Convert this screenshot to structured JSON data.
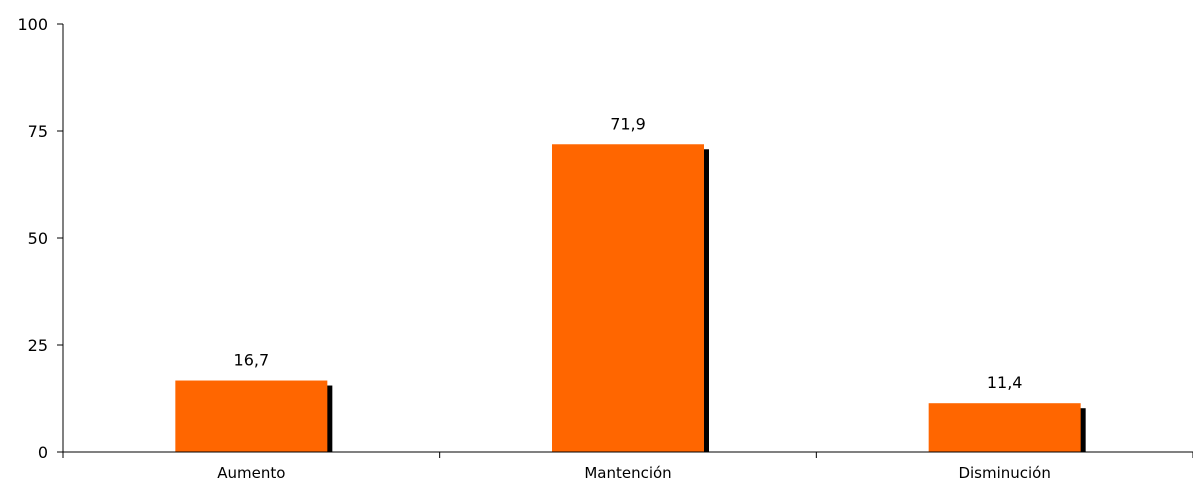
{
  "chart_data": {
    "type": "bar",
    "categories": [
      "Aumento",
      "Mantención",
      "Disminución"
    ],
    "values": [
      16.7,
      71.9,
      11.4
    ],
    "value_labels": [
      "16,7",
      "71,9",
      "11,4"
    ],
    "title": "",
    "xlabel": "",
    "ylabel": "",
    "ylim": [
      0,
      100
    ],
    "yticks": [
      0,
      25,
      50,
      75,
      100
    ],
    "ytick_labels": [
      "0",
      "25",
      "50",
      "75",
      "100"
    ],
    "grid": false,
    "legend": "none",
    "bar_color": "#FF6600",
    "shadow_color": "#000000"
  }
}
